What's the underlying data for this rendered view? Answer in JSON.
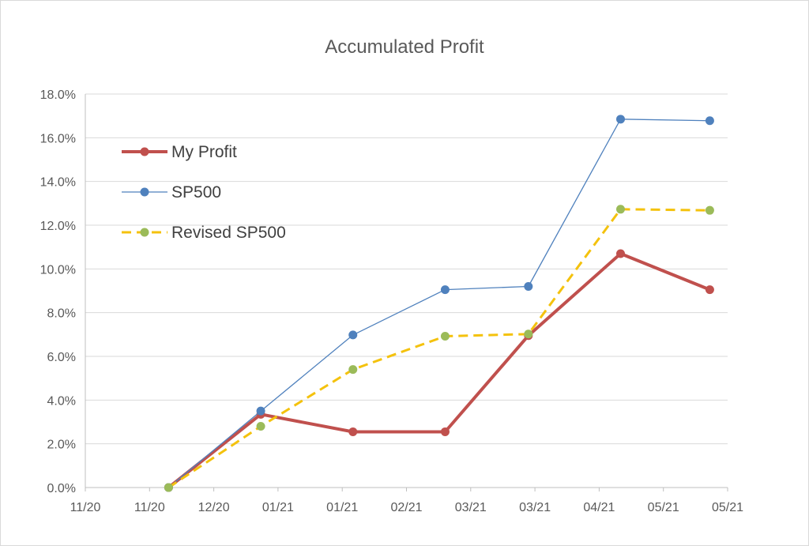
{
  "chart_data": {
    "type": "line",
    "title": "Accumulated Profit",
    "xlabel": "",
    "ylabel": "",
    "x_tick_labels": [
      "11/20",
      "11/20",
      "12/20",
      "01/21",
      "01/21",
      "02/21",
      "03/21",
      "03/21",
      "04/21",
      "05/21",
      "05/21"
    ],
    "y_tick_labels": [
      "0.0%",
      "2.0%",
      "4.0%",
      "6.0%",
      "8.0%",
      "10.0%",
      "12.0%",
      "14.0%",
      "16.0%",
      "18.0%"
    ],
    "ylim": [
      0,
      18
    ],
    "y_unit": "%",
    "grid": true,
    "legend_position": "top-left",
    "series": [
      {
        "name": "My Profit",
        "color": "#c0504d",
        "line_style": "solid",
        "line_weight": "thick",
        "points": [
          {
            "x": "2020-11-23",
            "y": 0.0
          },
          {
            "x": "2020-12-24",
            "y": 3.35
          },
          {
            "x": "2021-01-24",
            "y": 2.55
          },
          {
            "x": "2021-02-24",
            "y": 2.55
          },
          {
            "x": "2021-03-24",
            "y": 6.95
          },
          {
            "x": "2021-04-24",
            "y": 10.7
          },
          {
            "x": "2021-05-24",
            "y": 9.05
          }
        ]
      },
      {
        "name": "SP500",
        "color": "#4f81bd",
        "line_style": "solid",
        "line_weight": "thin",
        "points": [
          {
            "x": "2020-11-23",
            "y": 0.0
          },
          {
            "x": "2020-12-24",
            "y": 3.5
          },
          {
            "x": "2021-01-24",
            "y": 6.98
          },
          {
            "x": "2021-02-24",
            "y": 9.05
          },
          {
            "x": "2021-03-24",
            "y": 9.2
          },
          {
            "x": "2021-04-24",
            "y": 16.85
          },
          {
            "x": "2021-05-24",
            "y": 16.78
          }
        ]
      },
      {
        "name": "Revised SP500",
        "color": "#f4c20d",
        "marker_color": "#9bbb59",
        "line_style": "dashed",
        "line_weight": "medium",
        "points": [
          {
            "x": "2020-11-23",
            "y": 0.0
          },
          {
            "x": "2020-12-24",
            "y": 2.8
          },
          {
            "x": "2021-01-24",
            "y": 5.4
          },
          {
            "x": "2021-02-24",
            "y": 6.92
          },
          {
            "x": "2021-03-24",
            "y": 7.02
          },
          {
            "x": "2021-04-24",
            "y": 12.73
          },
          {
            "x": "2021-05-24",
            "y": 12.68
          }
        ]
      }
    ]
  }
}
